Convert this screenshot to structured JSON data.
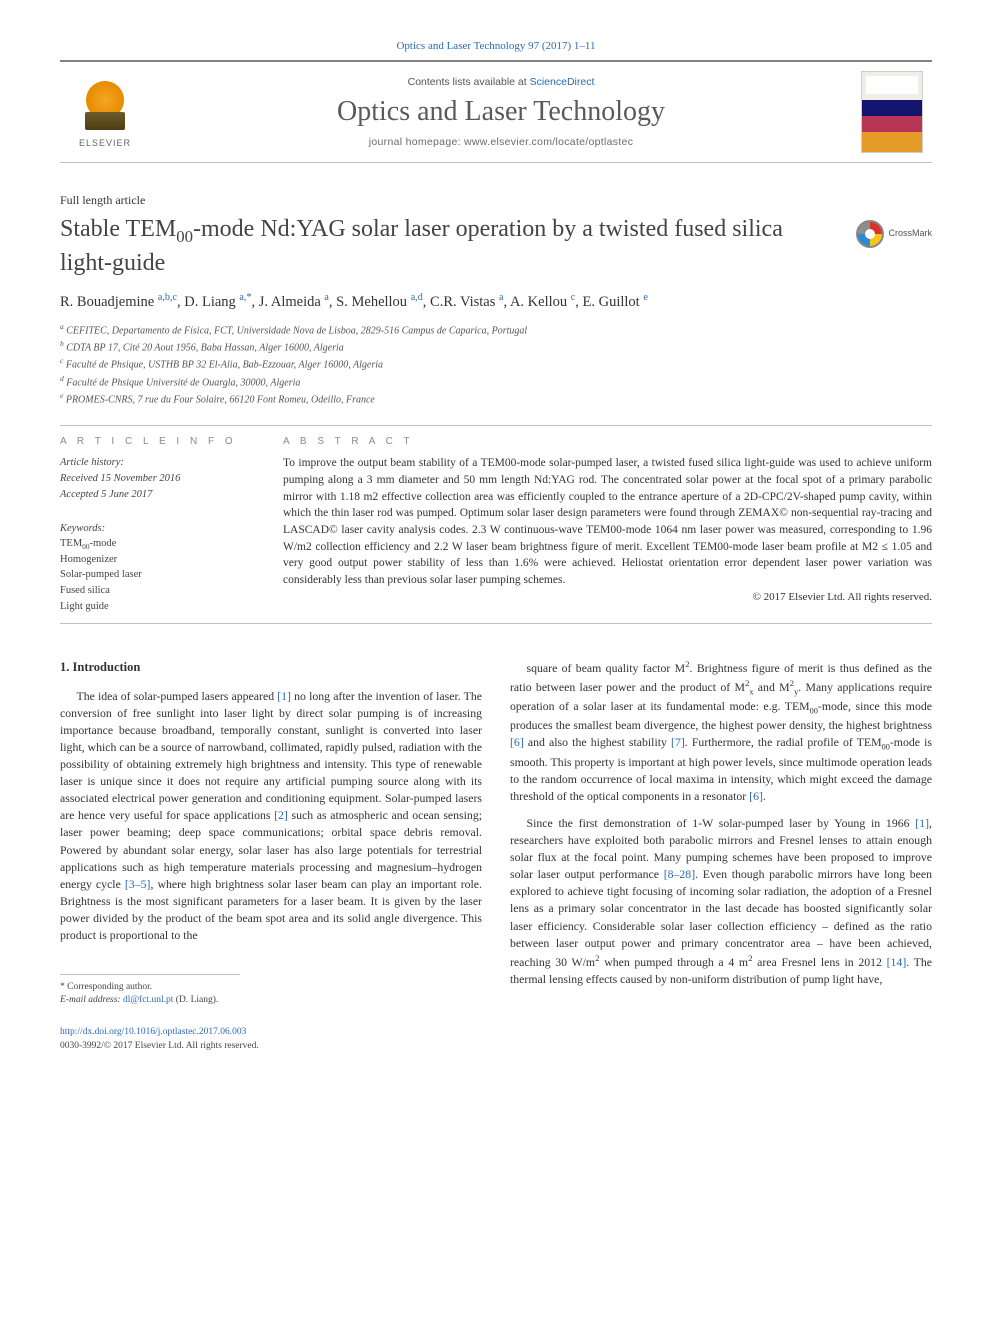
{
  "citation": "Optics and Laser Technology 97 (2017) 1–11",
  "masthead": {
    "contents_prefix": "Contents lists available at ",
    "contents_link": "ScienceDirect",
    "journal_name": "Optics and Laser Technology",
    "homepage_prefix": "journal homepage: ",
    "homepage_url": "www.elsevier.com/locate/optlastec",
    "publisher_name": "ELSEVIER",
    "cover_label": "Optics & Laser Technology"
  },
  "article_type": "Full length article",
  "title_pre": "Stable TEM",
  "title_sub": "00",
  "title_post": "-mode Nd:YAG solar laser operation by a twisted fused silica light-guide",
  "crossmark_label": "CrossMark",
  "authors_html": "R. Bouadjemine <span class='sup'>a,b,c</span>, D. Liang <span class='sup'>a,*</span>, J. Almeida <span class='sup'>a</span>, S. Mehellou <span class='sup'>a,d</span>, C.R. Vistas <span class='sup'>a</span>, A. Kellou <span class='sup'>c</span>, E. Guillot <span class='sup'>e</span>",
  "affiliations": [
    "a CEFITEC, Departamento de Física, FCT, Universidade Nova de Lisboa, 2829-516 Campus de Caparica, Portugal",
    "b CDTA BP 17, Cité 20 Aout 1956, Baba Hassan, Alger 16000, Algeria",
    "c Faculté de Phsique, USTHB BP 32 El-Alia, Bab-Ezzouar, Alger 16000, Algeria",
    "d Faculté de Phsique Université de Ouargla, 30000, Algeria",
    "e PROMES-CNRS, 7 rue du Four Solaire, 66120 Font Romeu, Odeillo, France"
  ],
  "article_info": {
    "heading": "A R T I C L E   I N F O",
    "history_label": "Article history:",
    "received": "Received 15 November 2016",
    "accepted": "Accepted 5 June 2017",
    "keywords_label": "Keywords:",
    "keywords": [
      "TEM00-mode",
      "Homogenizer",
      "Solar-pumped laser",
      "Fused silica",
      "Light guide"
    ]
  },
  "abstract": {
    "heading": "A B S T R A C T",
    "text": "To improve the output beam stability of a TEM00-mode solar-pumped laser, a twisted fused silica light-guide was used to achieve uniform pumping along a 3 mm diameter and 50 mm length Nd:YAG rod. The concentrated solar power at the focal spot of a primary parabolic mirror with 1.18 m2 effective collection area was efficiently coupled to the entrance aperture of a 2D-CPC/2V-shaped pump cavity, within which the thin laser rod was pumped. Optimum solar laser design parameters were found through ZEMAX© non-sequential ray-tracing and LASCAD© laser cavity analysis codes. 2.3 W continuous-wave TEM00-mode 1064 nm laser power was measured, corresponding to 1.96 W/m2 collection efficiency and 2.2 W laser beam brightness figure of merit. Excellent TEM00-mode laser beam profile at M2 ≤ 1.05 and very good output power stability of less than 1.6% were achieved. Heliostat orientation error dependent laser power variation was considerably less than previous solar laser pumping schemes.",
    "copyright": "© 2017 Elsevier Ltd. All rights reserved."
  },
  "intro": {
    "heading": "1. Introduction",
    "p1": "The idea of solar-pumped lasers appeared [1] no long after the invention of laser. The conversion of free sunlight into laser light by direct solar pumping is of increasing importance because broadband, temporally constant, sunlight is converted into laser light, which can be a source of narrowband, collimated, rapidly pulsed, radiation with the possibility of obtaining extremely high brightness and intensity. This type of renewable laser is unique since it does not require any artificial pumping source along with its associated electrical power generation and conditioning equipment. Solar-pumped lasers are hence very useful for space applications [2] such as atmospheric and ocean sensing; laser power beaming; deep space communications; orbital space debris removal. Powered by abundant solar energy, solar laser has also large potentials for terrestrial applications such as high temperature materials processing and magnesium–hydrogen energy cycle [3–5], where high brightness solar laser beam can play an important role. Brightness is the most significant parameters for a laser beam. It is given by the laser power divided by the product of the beam spot area and its solid angle divergence. This product is proportional to the",
    "p2": "square of beam quality factor M2. Brightness figure of merit is thus defined as the ratio between laser power and the product of M2x and M2y. Many applications require operation of a solar laser at its fundamental mode: e.g. TEM00-mode, since this mode produces the smallest beam divergence, the highest power density, the highest brightness [6] and also the highest stability [7]. Furthermore, the radial profile of TEM00-mode is smooth. This property is important at high power levels, since multimode operation leads to the random occurrence of local maxima in intensity, which might exceed the damage threshold of the optical components in a resonator [6].",
    "p3": "Since the first demonstration of 1-W solar-pumped laser by Young in 1966 [1], researchers have exploited both parabolic mirrors and Fresnel lenses to attain enough solar flux at the focal point. Many pumping schemes have been proposed to improve solar laser output performance [8–28]. Even though parabolic mirrors have long been explored to achieve tight focusing of incoming solar radiation, the adoption of a Fresnel lens as a primary solar concentrator in the last decade has boosted significantly solar laser efficiency. Considerable solar laser collection efficiency – defined as the ratio between laser output power and primary concentrator area – have been achieved, reaching 30 W/m2 when pumped through a 4 m2 area Fresnel lens in 2012 [14]. The thermal lensing effects caused by non-uniform distribution of pump light have,",
    "refs": {
      "r1": "[1]",
      "r2": "[2]",
      "r35": "[3–5]",
      "r6": "[6]",
      "r7": "[7]",
      "r828": "[8–28]",
      "r14": "[14]"
    }
  },
  "footer": {
    "corresponding_label": "* Corresponding author.",
    "email_label": "E-mail address:",
    "email": "dl@fct.unl.pt",
    "email_who": " (D. Liang).",
    "doi_url": "http://dx.doi.org/10.1016/j.optlastec.2017.06.003",
    "issn_line": "0030-3992/© 2017 Elsevier Ltd. All rights reserved."
  },
  "colors": {
    "link": "#2a6ab5",
    "text": "#333333",
    "rule": "#bfbfbf",
    "muted": "#6a6a6a"
  },
  "typography": {
    "title_pt": 24,
    "body_pt": 11.8,
    "abstract_pt": 11.5,
    "affil_pt": 10,
    "journal_name_pt": 28
  }
}
